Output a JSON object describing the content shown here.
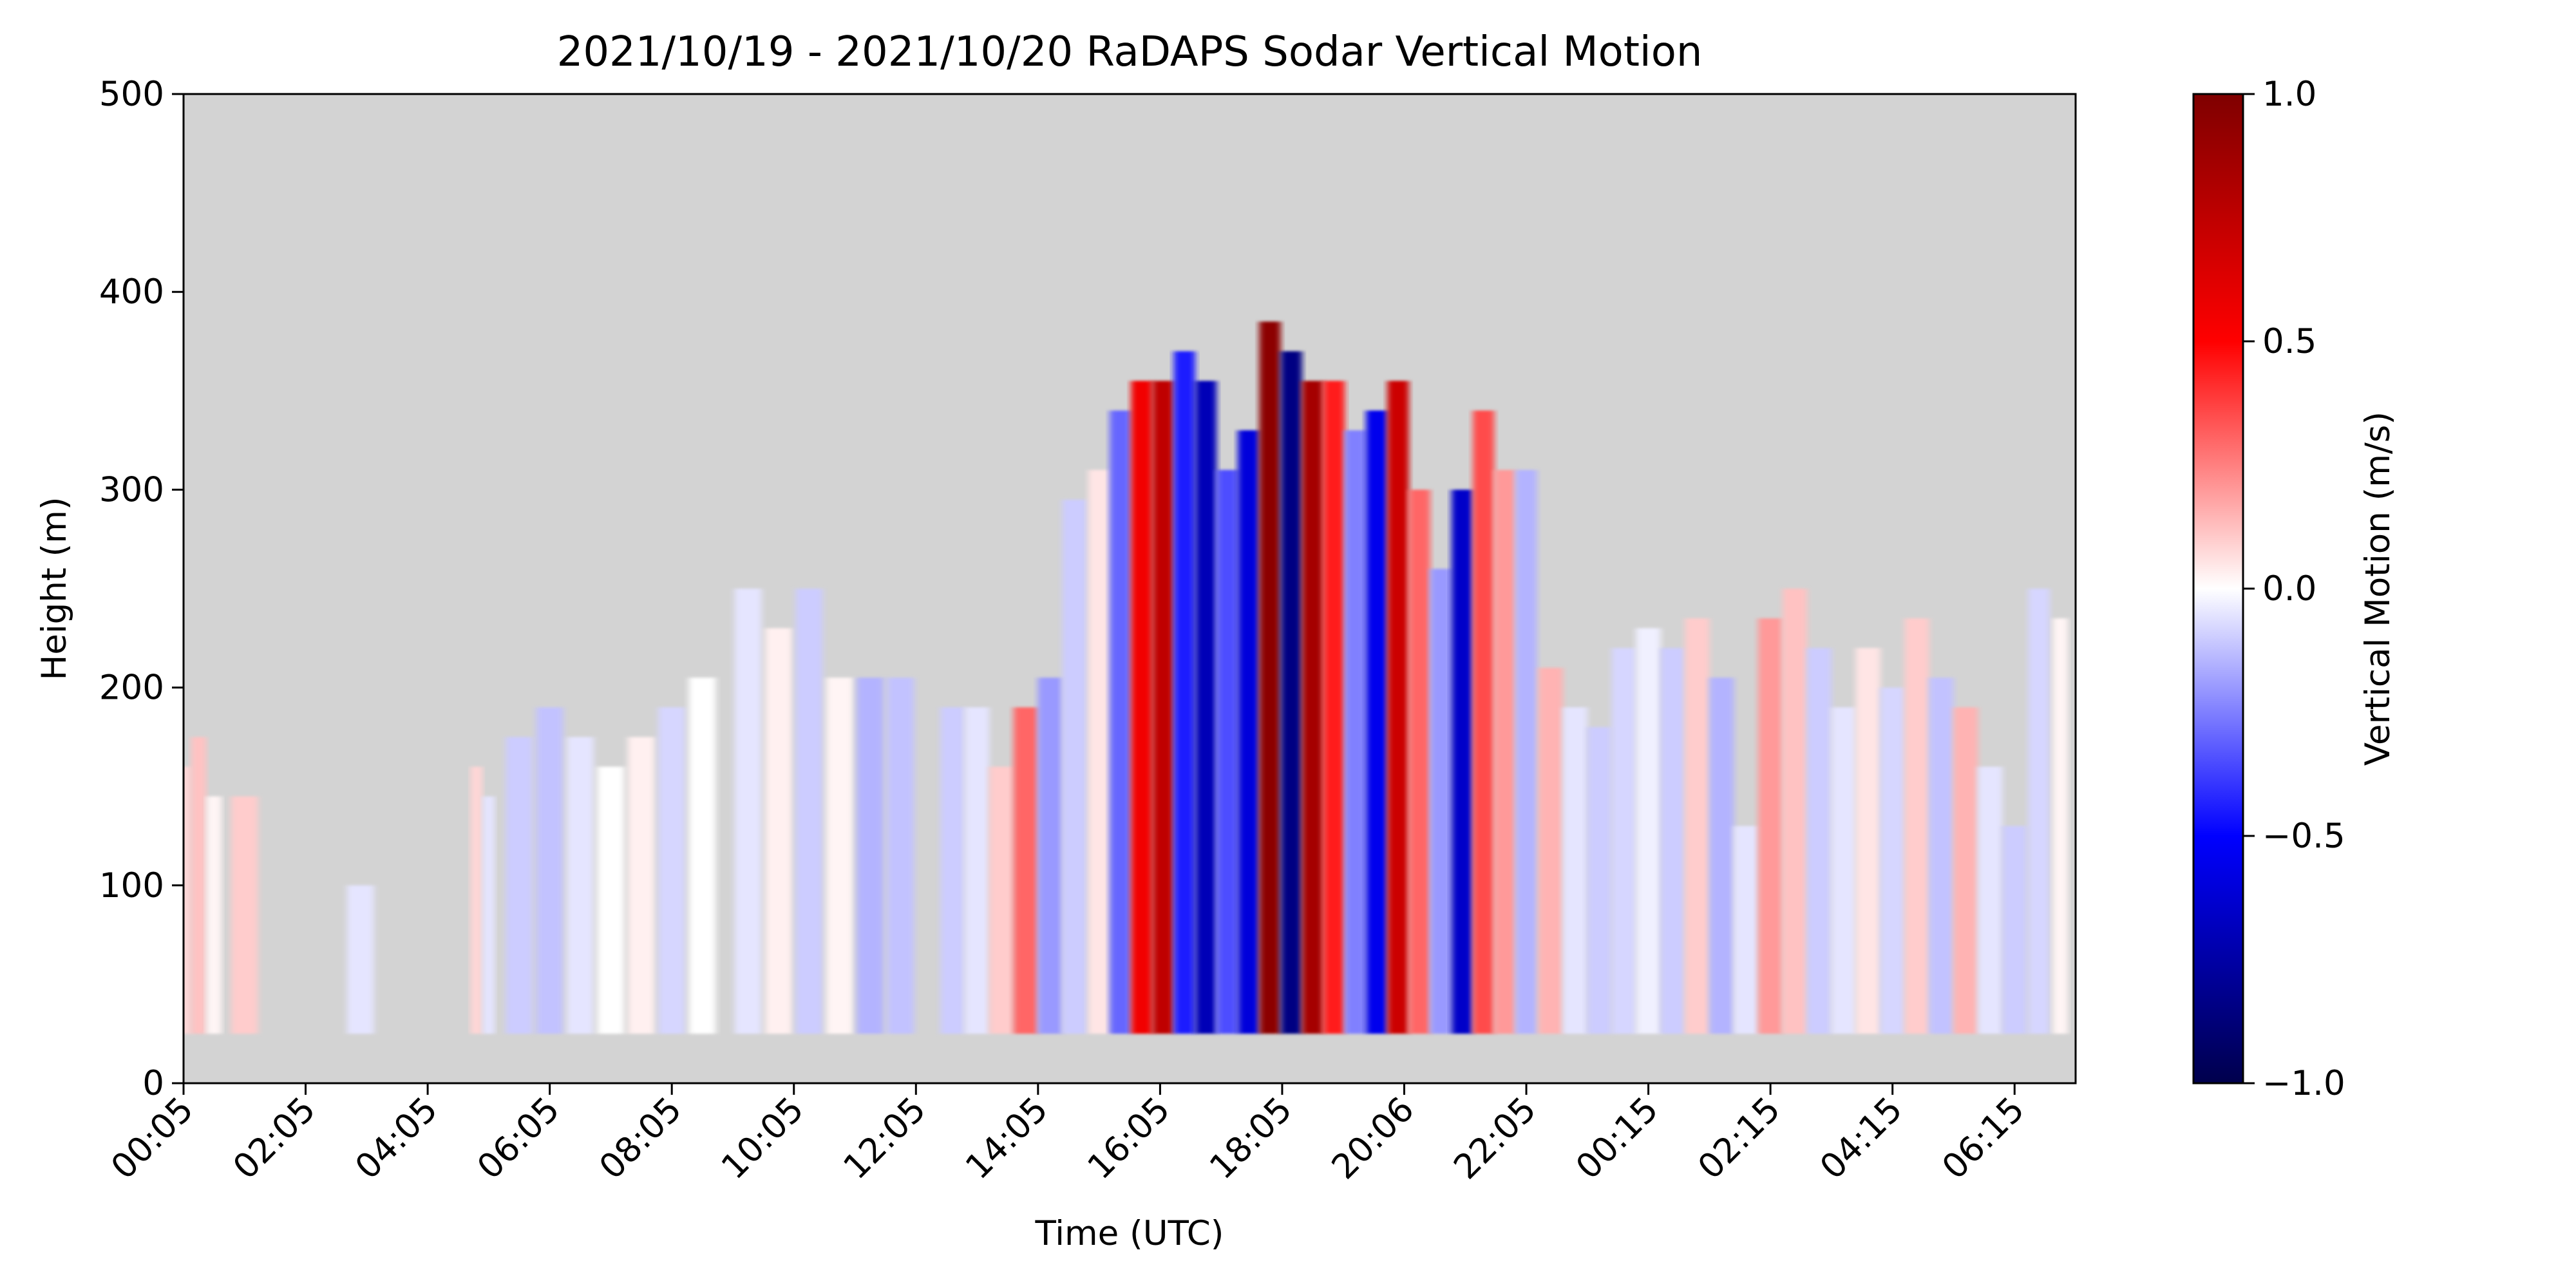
{
  "chart_data": {
    "type": "heatmap",
    "title": "2021/10/19 - 2021/10/20 RaDAPS Sodar Vertical Motion",
    "xlabel": "Time (UTC)",
    "ylabel": "Height (m)",
    "ylim": [
      0,
      500
    ],
    "x_ticks": [
      "00:05",
      "02:05",
      "04:05",
      "06:05",
      "08:05",
      "10:05",
      "12:05",
      "14:05",
      "16:05",
      "18:05",
      "20:06",
      "22:05",
      "00:15",
      "02:15",
      "04:15",
      "06:15"
    ],
    "y_ticks": [
      0,
      100,
      200,
      300,
      400,
      500
    ],
    "grid": false,
    "background_color": "#d3d3d3",
    "min_height": 25,
    "colorbar": {
      "label": "Vertical Motion (m/s)",
      "range": [
        -1.0,
        1.0
      ],
      "ticks": [
        "1.0",
        "0.5",
        "0.0",
        "−0.5",
        "−1.0"
      ],
      "tick_values": [
        1.0,
        0.5,
        0.0,
        -0.5,
        -1.0
      ],
      "colormap": "seismic",
      "colors": [
        "#00004c",
        "#0000ff",
        "#ffffff",
        "#ff0000",
        "#7f0000"
      ]
    },
    "columns": [
      {
        "hours": 0.0,
        "top": 160,
        "value": 0.08
      },
      {
        "hours": 0.25,
        "top": 175,
        "value": 0.12
      },
      {
        "hours": 0.5,
        "top": 145,
        "value": 0.02
      },
      {
        "hours": 1.0,
        "top": 145,
        "value": 0.1
      },
      {
        "hours": 2.9,
        "top": 100,
        "value": -0.05
      },
      {
        "hours": 4.8,
        "top": 160,
        "value": 0.08
      },
      {
        "hours": 5.0,
        "top": 145,
        "value": -0.05
      },
      {
        "hours": 5.5,
        "top": 175,
        "value": -0.1
      },
      {
        "hours": 6.0,
        "top": 190,
        "value": -0.12
      },
      {
        "hours": 6.5,
        "top": 175,
        "value": -0.05
      },
      {
        "hours": 7.0,
        "top": 160,
        "value": 0.0
      },
      {
        "hours": 7.5,
        "top": 175,
        "value": 0.03
      },
      {
        "hours": 8.0,
        "top": 190,
        "value": -0.08
      },
      {
        "hours": 8.5,
        "top": 205,
        "value": 0.0
      },
      {
        "hours": 9.25,
        "top": 250,
        "value": -0.05
      },
      {
        "hours": 9.75,
        "top": 230,
        "value": 0.03
      },
      {
        "hours": 10.25,
        "top": 250,
        "value": -0.1
      },
      {
        "hours": 10.75,
        "top": 205,
        "value": 0.02
      },
      {
        "hours": 11.25,
        "top": 205,
        "value": -0.15
      },
      {
        "hours": 11.75,
        "top": 205,
        "value": -0.12
      },
      {
        "hours": 12.6,
        "top": 190,
        "value": -0.1
      },
      {
        "hours": 13.0,
        "top": 190,
        "value": -0.05
      },
      {
        "hours": 13.4,
        "top": 160,
        "value": 0.1
      },
      {
        "hours": 13.8,
        "top": 190,
        "value": 0.3
      },
      {
        "hours": 14.2,
        "top": 205,
        "value": -0.2
      },
      {
        "hours": 14.6,
        "top": 295,
        "value": -0.1
      },
      {
        "hours": 15.0,
        "top": 310,
        "value": 0.05
      },
      {
        "hours": 15.35,
        "top": 340,
        "value": -0.3
      },
      {
        "hours": 15.7,
        "top": 355,
        "value": 0.55
      },
      {
        "hours": 16.05,
        "top": 355,
        "value": 0.75
      },
      {
        "hours": 16.4,
        "top": 370,
        "value": -0.45
      },
      {
        "hours": 16.75,
        "top": 355,
        "value": -0.7
      },
      {
        "hours": 17.1,
        "top": 310,
        "value": -0.35
      },
      {
        "hours": 17.45,
        "top": 330,
        "value": -0.6
      },
      {
        "hours": 17.8,
        "top": 385,
        "value": 0.95
      },
      {
        "hours": 18.15,
        "top": 370,
        "value": -0.85
      },
      {
        "hours": 18.5,
        "top": 355,
        "value": 0.85
      },
      {
        "hours": 18.85,
        "top": 355,
        "value": 0.45
      },
      {
        "hours": 19.2,
        "top": 330,
        "value": -0.25
      },
      {
        "hours": 19.55,
        "top": 340,
        "value": -0.55
      },
      {
        "hours": 19.9,
        "top": 355,
        "value": 0.7
      },
      {
        "hours": 20.25,
        "top": 300,
        "value": 0.3
      },
      {
        "hours": 20.6,
        "top": 260,
        "value": -0.2
      },
      {
        "hours": 20.95,
        "top": 300,
        "value": -0.65
      },
      {
        "hours": 21.3,
        "top": 340,
        "value": 0.35
      },
      {
        "hours": 21.65,
        "top": 310,
        "value": 0.2
      },
      {
        "hours": 22.0,
        "top": 310,
        "value": -0.15
      },
      {
        "hours": 22.4,
        "top": 210,
        "value": 0.15
      },
      {
        "hours": 22.8,
        "top": 190,
        "value": -0.05
      },
      {
        "hours": 23.2,
        "top": 180,
        "value": -0.1
      },
      {
        "hours": 23.6,
        "top": 220,
        "value": -0.08
      },
      {
        "hours": 24.0,
        "top": 230,
        "value": -0.03
      },
      {
        "hours": 24.4,
        "top": 220,
        "value": -0.1
      },
      {
        "hours": 24.8,
        "top": 235,
        "value": 0.1
      },
      {
        "hours": 25.2,
        "top": 205,
        "value": -0.15
      },
      {
        "hours": 25.6,
        "top": 130,
        "value": -0.05
      },
      {
        "hours": 26.0,
        "top": 235,
        "value": 0.2
      },
      {
        "hours": 26.4,
        "top": 250,
        "value": 0.12
      },
      {
        "hours": 26.8,
        "top": 220,
        "value": -0.1
      },
      {
        "hours": 27.2,
        "top": 190,
        "value": -0.05
      },
      {
        "hours": 27.6,
        "top": 220,
        "value": 0.05
      },
      {
        "hours": 28.0,
        "top": 200,
        "value": -0.08
      },
      {
        "hours": 28.4,
        "top": 235,
        "value": 0.1
      },
      {
        "hours": 28.8,
        "top": 205,
        "value": -0.12
      },
      {
        "hours": 29.2,
        "top": 190,
        "value": 0.15
      },
      {
        "hours": 29.6,
        "top": 160,
        "value": -0.05
      },
      {
        "hours": 30.0,
        "top": 130,
        "value": -0.1
      },
      {
        "hours": 30.4,
        "top": 250,
        "value": -0.08
      },
      {
        "hours": 30.75,
        "top": 235,
        "value": 0.02
      }
    ]
  }
}
